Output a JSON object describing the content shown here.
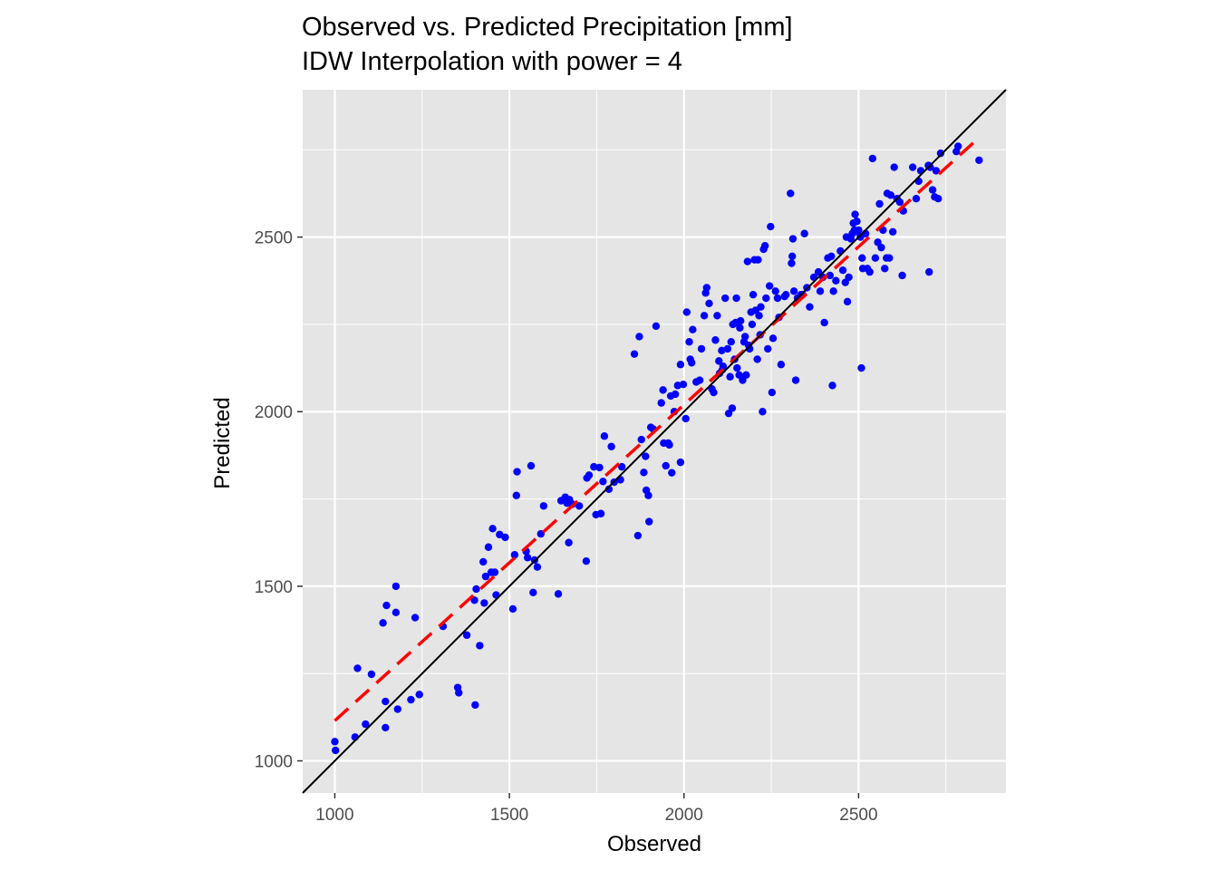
{
  "chart_data": {
    "type": "scatter",
    "title": "Observed vs. Predicted Precipitation [mm]",
    "subtitle": "IDW Interpolation with power = 4",
    "xlabel": "Observed",
    "ylabel": "Predicted",
    "xlim": [
      908,
      2922
    ],
    "ylim": [
      908,
      2922
    ],
    "x_ticks": [
      1000,
      1500,
      2000,
      2500
    ],
    "y_ticks": [
      1000,
      1500,
      2000,
      2500
    ],
    "grid": true,
    "panel_background": "#e5e5e5",
    "point_color": "#0000ff",
    "identity_line": {
      "from": [
        908,
        908
      ],
      "to": [
        2922,
        2922
      ],
      "color": "#000000"
    },
    "fit_line": {
      "from": [
        1000,
        1115
      ],
      "to": [
        2840,
        2780
      ],
      "color": "#ff0000",
      "style": "dashed"
    },
    "points": [
      [
        1000,
        1055
      ],
      [
        1002,
        1030
      ],
      [
        1058,
        1068
      ],
      [
        1065,
        1265
      ],
      [
        1088,
        1105
      ],
      [
        1105,
        1248
      ],
      [
        1138,
        1395
      ],
      [
        1145,
        1170
      ],
      [
        1145,
        1095
      ],
      [
        1148,
        1445
      ],
      [
        1175,
        1500
      ],
      [
        1180,
        1148
      ],
      [
        1175,
        1425
      ],
      [
        1218,
        1175
      ],
      [
        1230,
        1410
      ],
      [
        1242,
        1190
      ],
      [
        1310,
        1385
      ],
      [
        1352,
        1210
      ],
      [
        1355,
        1195
      ],
      [
        1378,
        1360
      ],
      [
        1400,
        1460
      ],
      [
        1405,
        1492
      ],
      [
        1402,
        1160
      ],
      [
        1415,
        1330
      ],
      [
        1425,
        1570
      ],
      [
        1428,
        1452
      ],
      [
        1432,
        1528
      ],
      [
        1440,
        1612
      ],
      [
        1448,
        1540
      ],
      [
        1452,
        1665
      ],
      [
        1458,
        1540
      ],
      [
        1462,
        1475
      ],
      [
        1472,
        1648
      ],
      [
        1488,
        1640
      ],
      [
        1510,
        1435
      ],
      [
        1515,
        1590
      ],
      [
        1520,
        1760
      ],
      [
        1522,
        1828
      ],
      [
        1548,
        1600
      ],
      [
        1552,
        1582
      ],
      [
        1562,
        1845
      ],
      [
        1568,
        1482
      ],
      [
        1572,
        1575
      ],
      [
        1580,
        1555
      ],
      [
        1590,
        1650
      ],
      [
        1598,
        1730
      ],
      [
        1640,
        1478
      ],
      [
        1648,
        1745
      ],
      [
        1660,
        1755
      ],
      [
        1665,
        1738
      ],
      [
        1670,
        1625
      ],
      [
        1672,
        1748
      ],
      [
        1680,
        1735
      ],
      [
        1700,
        1730
      ],
      [
        1720,
        1572
      ],
      [
        1722,
        1810
      ],
      [
        1728,
        1818
      ],
      [
        1742,
        1842
      ],
      [
        1748,
        1705
      ],
      [
        1758,
        1840
      ],
      [
        1762,
        1708
      ],
      [
        1768,
        1800
      ],
      [
        1772,
        1930
      ],
      [
        1785,
        1778
      ],
      [
        1792,
        1900
      ],
      [
        1800,
        1798
      ],
      [
        1818,
        1805
      ],
      [
        1822,
        1842
      ],
      [
        1858,
        2165
      ],
      [
        1868,
        1645
      ],
      [
        1872,
        2215
      ],
      [
        1878,
        1920
      ],
      [
        1885,
        1826
      ],
      [
        1890,
        1872
      ],
      [
        1892,
        1775
      ],
      [
        1898,
        1760
      ],
      [
        1900,
        1685
      ],
      [
        1905,
        1955
      ],
      [
        1912,
        1950
      ],
      [
        1920,
        2245
      ],
      [
        1935,
        2025
      ],
      [
        1940,
        2062
      ],
      [
        1942,
        1910
      ],
      [
        1948,
        1845
      ],
      [
        1955,
        1910
      ],
      [
        1958,
        1905
      ],
      [
        1962,
        2045
      ],
      [
        1965,
        1825
      ],
      [
        1972,
        2000
      ],
      [
        1975,
        2050
      ],
      [
        1982,
        2075
      ],
      [
        1990,
        2135
      ],
      [
        1990,
        1855
      ],
      [
        1998,
        2078
      ],
      [
        2005,
        1980
      ],
      [
        2008,
        2285
      ],
      [
        2015,
        2200
      ],
      [
        2018,
        2150
      ],
      [
        2022,
        2140
      ],
      [
        2025,
        2235
      ],
      [
        2035,
        2085
      ],
      [
        2045,
        2090
      ],
      [
        2050,
        2180
      ],
      [
        2058,
        2275
      ],
      [
        2062,
        2340
      ],
      [
        2065,
        2355
      ],
      [
        2072,
        2310
      ],
      [
        2080,
        2065
      ],
      [
        2085,
        2055
      ],
      [
        2090,
        2205
      ],
      [
        2095,
        2275
      ],
      [
        2100,
        2145
      ],
      [
        2102,
        2110
      ],
      [
        2108,
        2175
      ],
      [
        2110,
        2120
      ],
      [
        2112,
        2130
      ],
      [
        2118,
        2325
      ],
      [
        2125,
        2180
      ],
      [
        2128,
        1995
      ],
      [
        2132,
        2100
      ],
      [
        2135,
        2200
      ],
      [
        2138,
        2010
      ],
      [
        2140,
        2250
      ],
      [
        2145,
        2150
      ],
      [
        2148,
        2255
      ],
      [
        2150,
        2325
      ],
      [
        2152,
        2125
      ],
      [
        2158,
        2105
      ],
      [
        2160,
        2240
      ],
      [
        2162,
        2260
      ],
      [
        2168,
        2090
      ],
      [
        2172,
        2200
      ],
      [
        2175,
        2215
      ],
      [
        2178,
        2105
      ],
      [
        2182,
        2430
      ],
      [
        2185,
        2190
      ],
      [
        2188,
        2180
      ],
      [
        2192,
        2285
      ],
      [
        2195,
        2250
      ],
      [
        2198,
        2335
      ],
      [
        2202,
        2435
      ],
      [
        2205,
        2290
      ],
      [
        2210,
        2150
      ],
      [
        2212,
        2435
      ],
      [
        2215,
        2275
      ],
      [
        2218,
        2220
      ],
      [
        2220,
        2300
      ],
      [
        2225,
        2000
      ],
      [
        2228,
        2465
      ],
      [
        2232,
        2475
      ],
      [
        2235,
        2325
      ],
      [
        2240,
        2180
      ],
      [
        2245,
        2360
      ],
      [
        2248,
        2530
      ],
      [
        2252,
        2055
      ],
      [
        2255,
        2210
      ],
      [
        2262,
        2345
      ],
      [
        2268,
        2325
      ],
      [
        2272,
        2270
      ],
      [
        2278,
        2135
      ],
      [
        2288,
        2330
      ],
      [
        2292,
        2335
      ],
      [
        2305,
        2625
      ],
      [
        2308,
        2425
      ],
      [
        2310,
        2445
      ],
      [
        2312,
        2495
      ],
      [
        2315,
        2345
      ],
      [
        2320,
        2090
      ],
      [
        2325,
        2325
      ],
      [
        2335,
        2335
      ],
      [
        2340,
        2335
      ],
      [
        2345,
        2510
      ],
      [
        2352,
        2355
      ],
      [
        2360,
        2300
      ],
      [
        2372,
        2385
      ],
      [
        2385,
        2400
      ],
      [
        2390,
        2345
      ],
      [
        2398,
        2385
      ],
      [
        2402,
        2255
      ],
      [
        2412,
        2440
      ],
      [
        2418,
        2390
      ],
      [
        2422,
        2445
      ],
      [
        2425,
        2075
      ],
      [
        2428,
        2345
      ],
      [
        2435,
        2375
      ],
      [
        2448,
        2460
      ],
      [
        2455,
        2405
      ],
      [
        2462,
        2370
      ],
      [
        2465,
        2500
      ],
      [
        2468,
        2315
      ],
      [
        2472,
        2385
      ],
      [
        2478,
        2495
      ],
      [
        2482,
        2510
      ],
      [
        2485,
        2540
      ],
      [
        2488,
        2520
      ],
      [
        2490,
        2565
      ],
      [
        2495,
        2545
      ],
      [
        2498,
        2515
      ],
      [
        2500,
        2520
      ],
      [
        2505,
        2500
      ],
      [
        2508,
        2125
      ],
      [
        2510,
        2440
      ],
      [
        2512,
        2410
      ],
      [
        2520,
        2510
      ],
      [
        2525,
        2410
      ],
      [
        2532,
        2400
      ],
      [
        2540,
        2725
      ],
      [
        2548,
        2440
      ],
      [
        2555,
        2485
      ],
      [
        2560,
        2595
      ],
      [
        2565,
        2470
      ],
      [
        2570,
        2520
      ],
      [
        2575,
        2410
      ],
      [
        2580,
        2440
      ],
      [
        2582,
        2625
      ],
      [
        2588,
        2440
      ],
      [
        2592,
        2620
      ],
      [
        2598,
        2515
      ],
      [
        2602,
        2700
      ],
      [
        2610,
        2610
      ],
      [
        2618,
        2600
      ],
      [
        2625,
        2390
      ],
      [
        2628,
        2575
      ],
      [
        2655,
        2700
      ],
      [
        2665,
        2610
      ],
      [
        2672,
        2660
      ],
      [
        2678,
        2690
      ],
      [
        2700,
        2705
      ],
      [
        2702,
        2400
      ],
      [
        2705,
        2700
      ],
      [
        2712,
        2635
      ],
      [
        2718,
        2615
      ],
      [
        2722,
        2690
      ],
      [
        2728,
        2610
      ],
      [
        2735,
        2740
      ],
      [
        2780,
        2745
      ],
      [
        2785,
        2760
      ],
      [
        2845,
        2720
      ]
    ]
  }
}
